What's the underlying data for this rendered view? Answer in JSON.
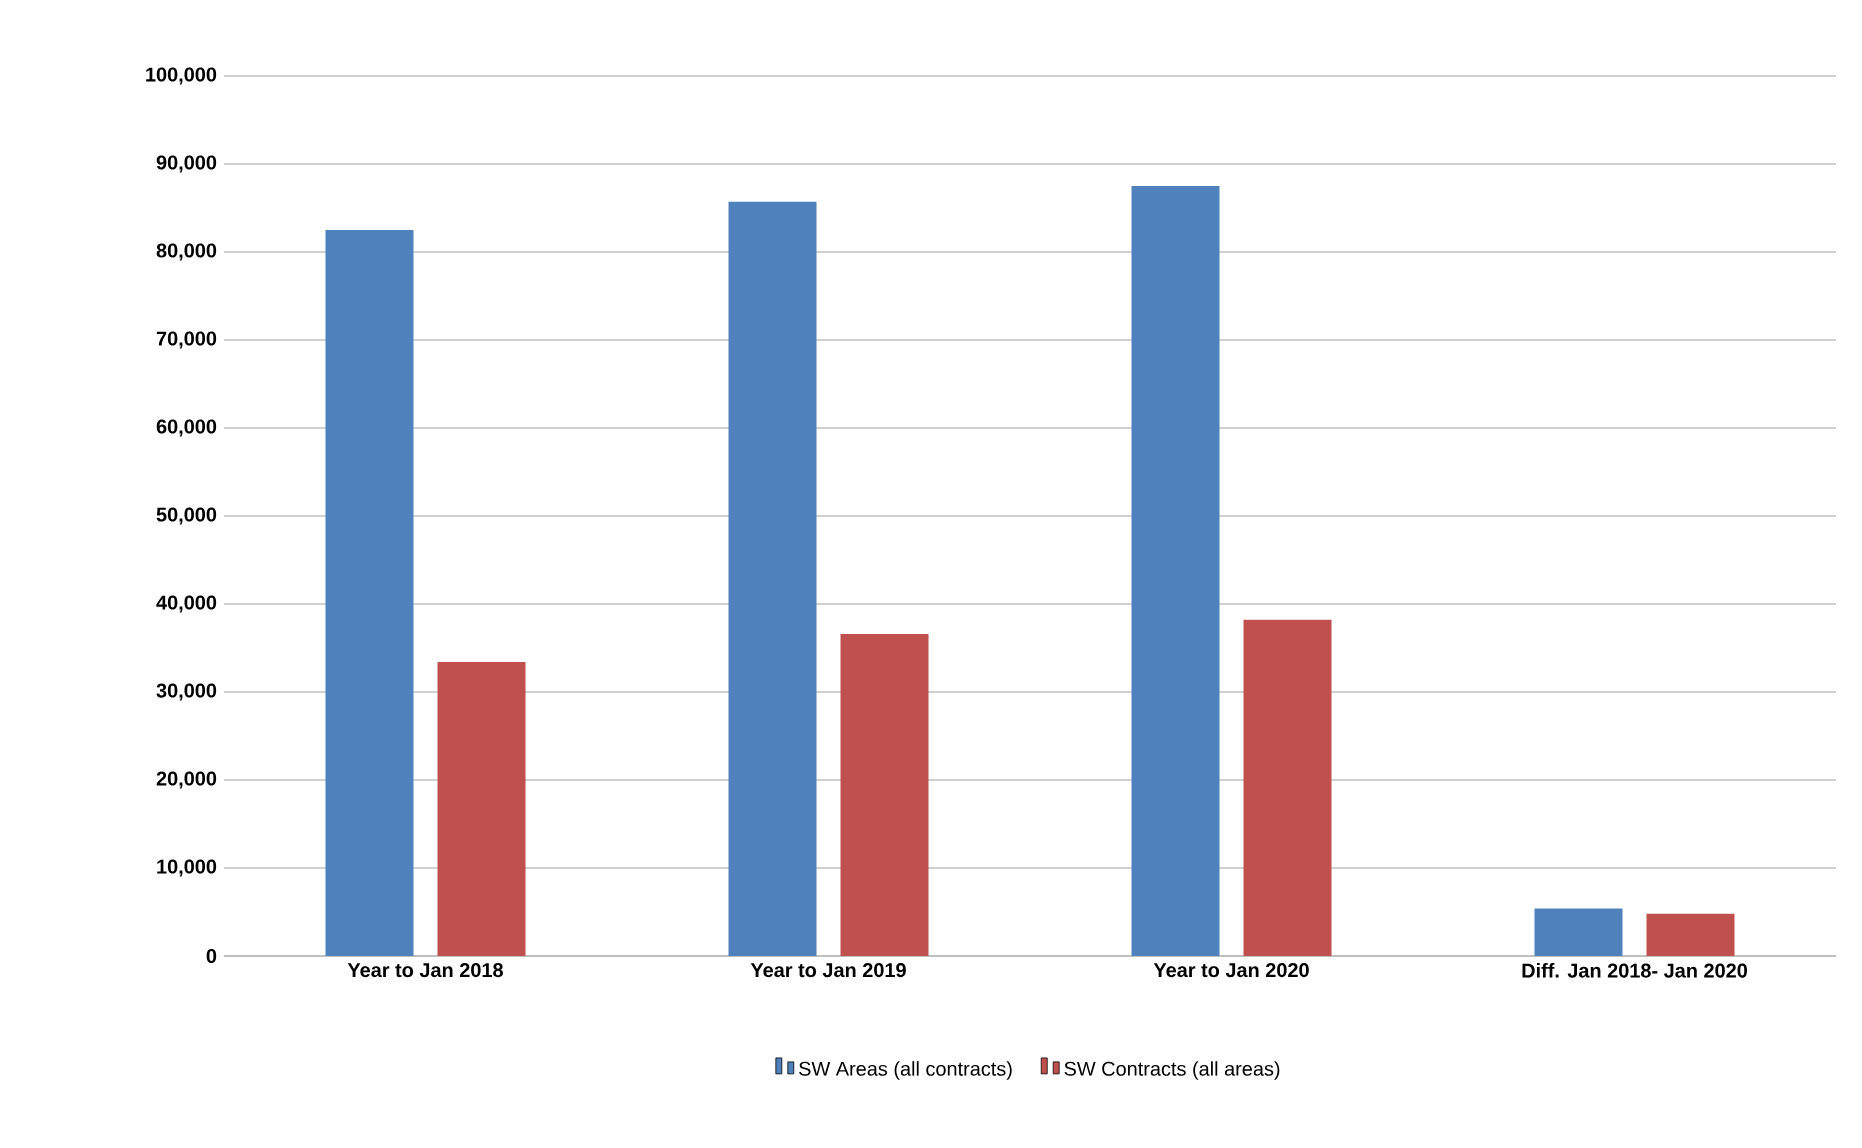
{
  "chart_data": {
    "type": "bar",
    "categories": [
      "Year to Jan 2018",
      "Year to Jan 2019",
      "Year to Jan 2020",
      "Diff. Jan 2018- Jan 2020"
    ],
    "series": [
      {
        "name": "SW Areas (all contracts)",
        "color": "#4f81bd",
        "values": [
          82500,
          85700,
          87500,
          5400
        ]
      },
      {
        "name": "SW Contracts (all areas)",
        "color": "#c0504d",
        "values": [
          33400,
          36600,
          38200,
          4800
        ]
      }
    ],
    "ylim": [
      0,
      100000
    ],
    "yticks": [
      {
        "value": 0,
        "label": "0"
      },
      {
        "value": 10000,
        "label": "10,000"
      },
      {
        "value": 20000,
        "label": "20,000"
      },
      {
        "value": 30000,
        "label": "30,000"
      },
      {
        "value": 40000,
        "label": "40,000"
      },
      {
        "value": 50000,
        "label": "50,000"
      },
      {
        "value": 60000,
        "label": "60,000"
      },
      {
        "value": 70000,
        "label": "70,000"
      },
      {
        "value": 80000,
        "label": "80,000"
      },
      {
        "value": 90000,
        "label": "90,000"
      },
      {
        "value": 100000,
        "label": "100,000"
      }
    ],
    "grid": "y",
    "legend": "bottom"
  }
}
